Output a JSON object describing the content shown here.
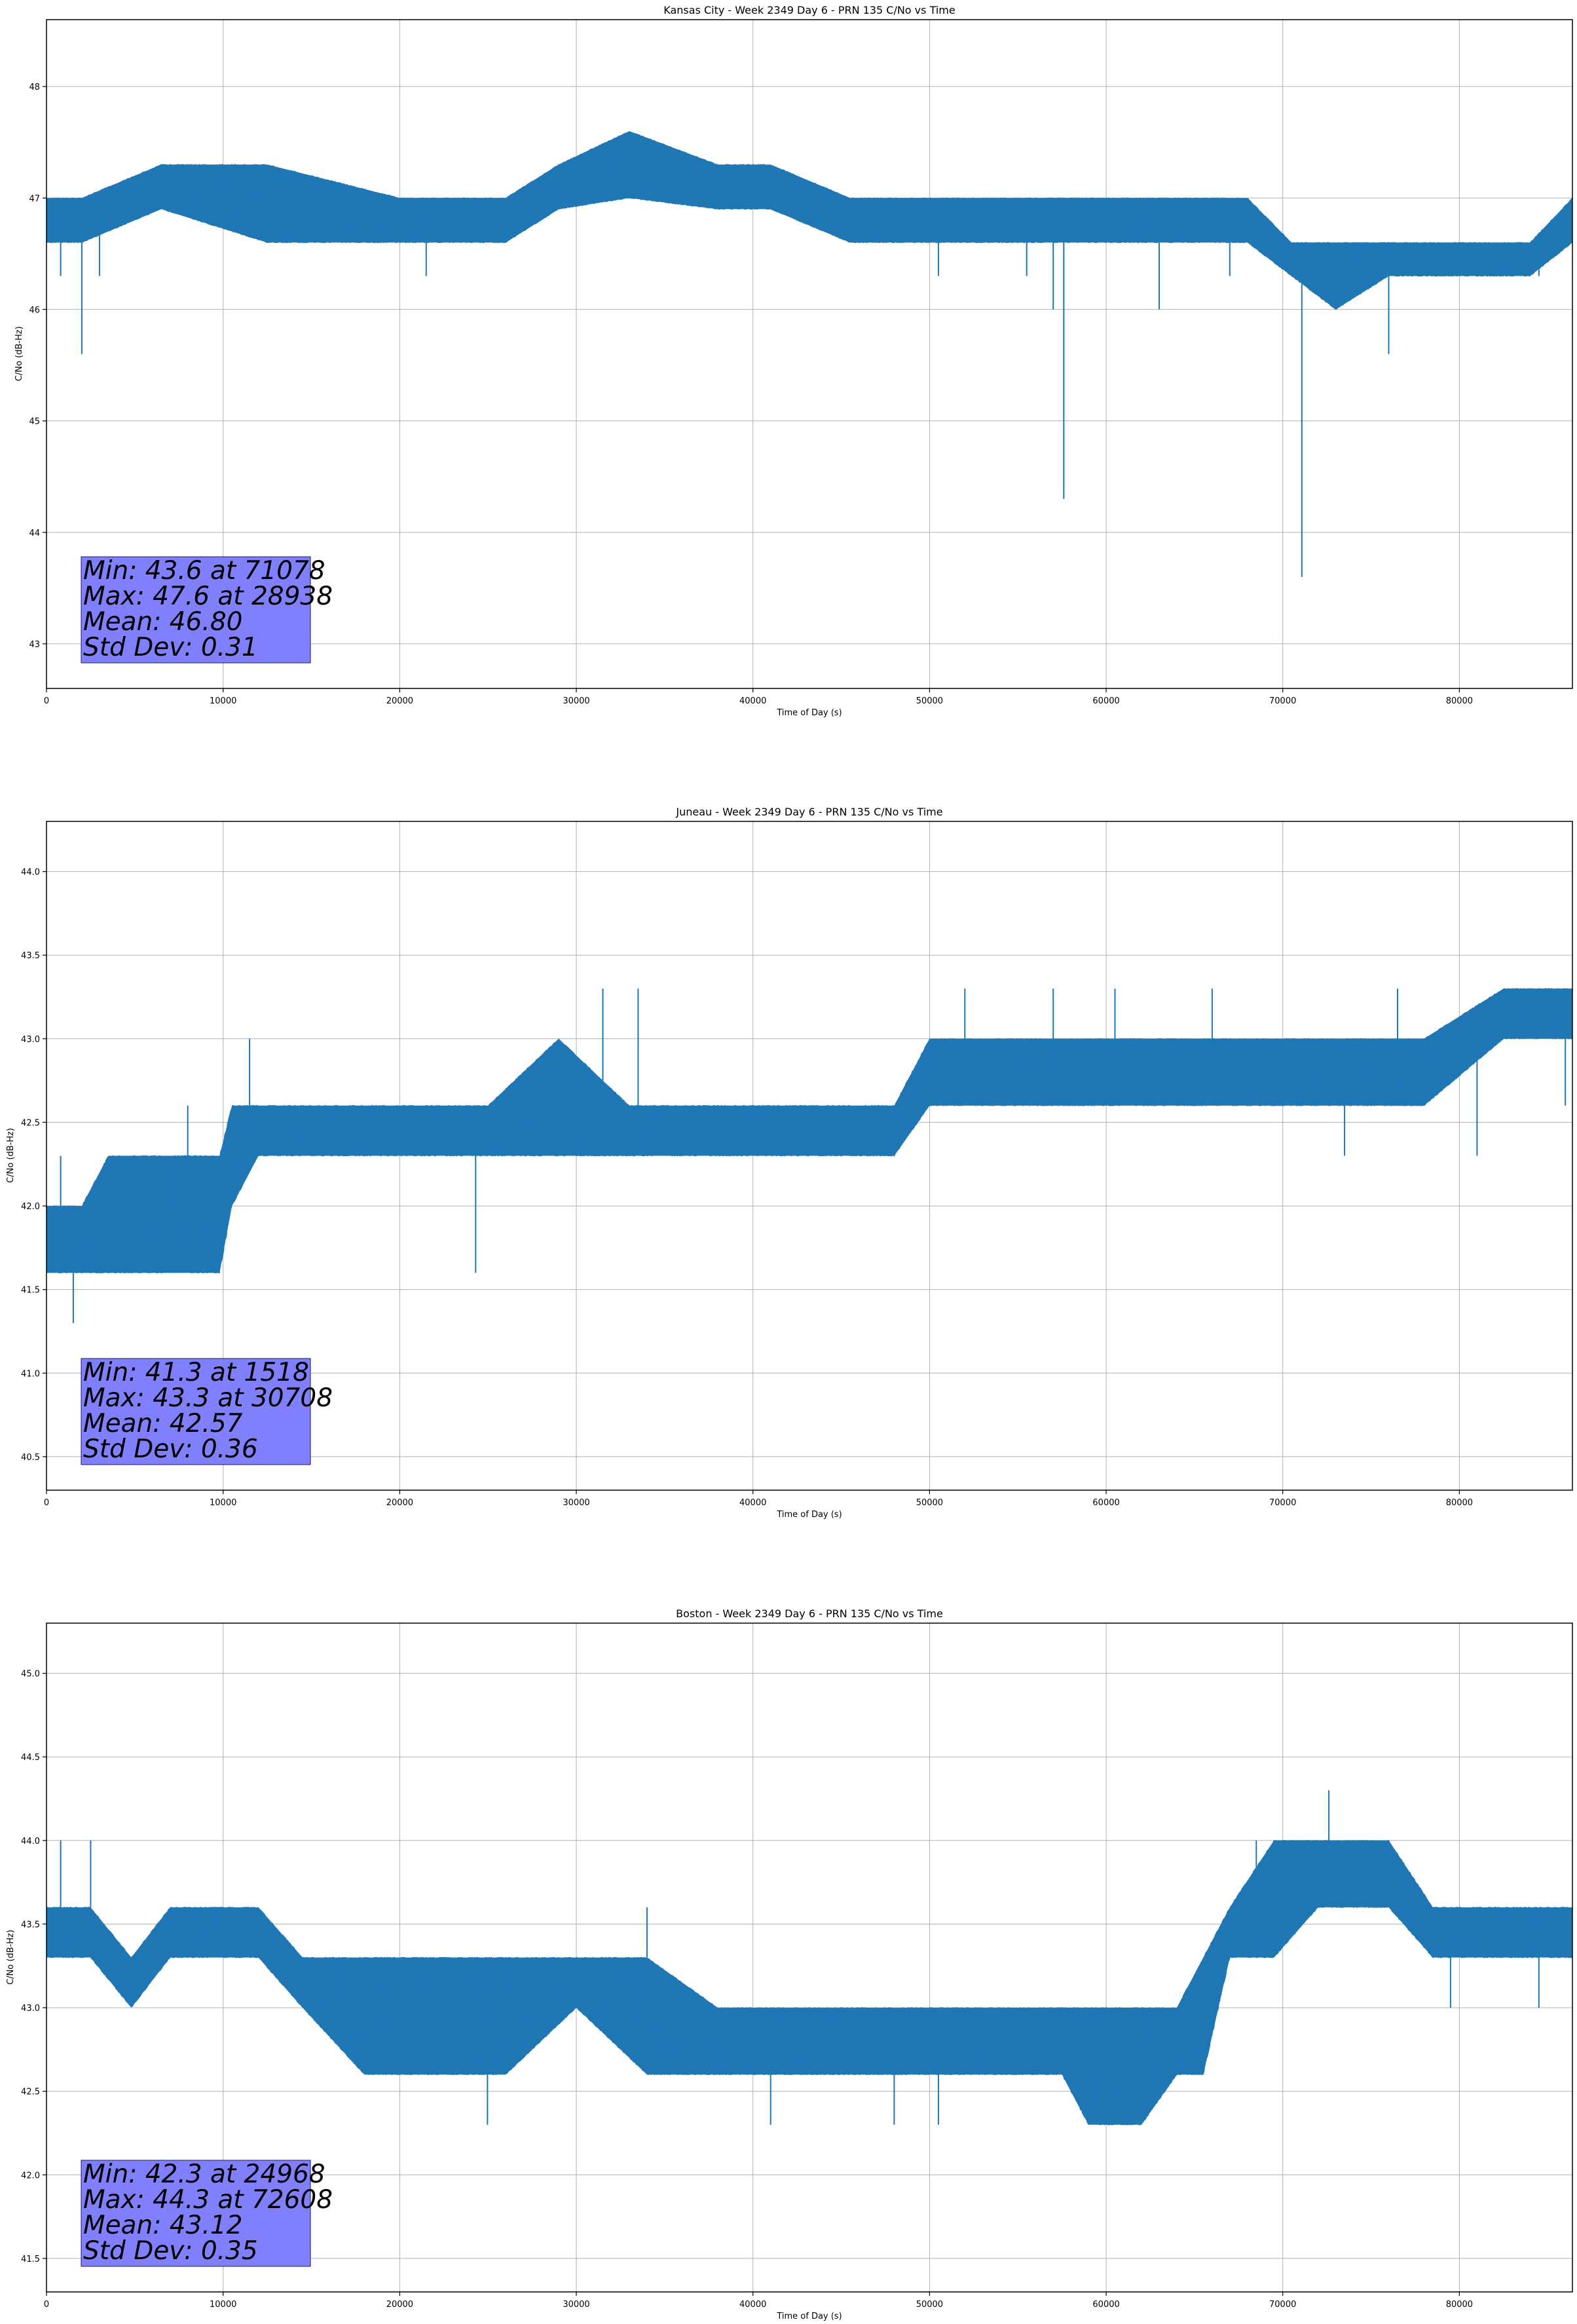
{
  "chart_data": [
    {
      "type": "line",
      "title": "Kansas City - Week 2349 Day 6 - PRN 135 C/No vs Time",
      "xlabel": "Time of Day (s)",
      "ylabel": "C/No (dB-Hz)",
      "xlim": [
        0,
        86400
      ],
      "ylim": [
        42.6,
        48.6
      ],
      "x_ticks": [
        0,
        10000,
        20000,
        30000,
        40000,
        50000,
        60000,
        70000,
        80000
      ],
      "y_ticks": [
        43,
        44,
        45,
        46,
        47,
        48
      ],
      "y_decimals": 0,
      "grid": true,
      "color": "#1f77b4",
      "series": {
        "name": "C/No",
        "x": [
          0,
          2000,
          6500,
          12500,
          20000,
          23000,
          26000,
          29000,
          33000,
          38000,
          41000,
          45500,
          50000,
          56000,
          62000,
          68000,
          70500,
          73000,
          76000,
          78000,
          80500,
          84000,
          86400
        ],
        "low": [
          46.6,
          46.6,
          46.9,
          46.6,
          46.6,
          46.6,
          46.6,
          46.9,
          47.0,
          46.9,
          46.9,
          46.6,
          46.6,
          46.6,
          46.6,
          46.6,
          46.3,
          46.0,
          46.3,
          46.3,
          46.3,
          46.3,
          46.6
        ],
        "high": [
          47.0,
          47.0,
          47.3,
          47.3,
          47.0,
          47.0,
          47.0,
          47.3,
          47.6,
          47.3,
          47.3,
          47.0,
          47.0,
          47.0,
          47.0,
          47.0,
          46.6,
          46.6,
          46.6,
          46.6,
          46.6,
          46.6,
          47.0
        ],
        "spikes": [
          [
            2000,
            45.6
          ],
          [
            800,
            46.3
          ],
          [
            3000,
            46.3
          ],
          [
            21500,
            46.3
          ],
          [
            46000,
            46.6
          ],
          [
            50500,
            46.3
          ],
          [
            55500,
            46.3
          ],
          [
            57000,
            46.0
          ],
          [
            57600,
            44.3
          ],
          [
            63000,
            46.0
          ],
          [
            71078,
            43.6
          ],
          [
            76000,
            45.6
          ],
          [
            67000,
            46.3
          ],
          [
            79500,
            46.3
          ],
          [
            84500,
            46.3
          ]
        ]
      },
      "stats": [
        "Min: 43.6 at 71078",
        "Max: 47.6 at 28938",
        "Mean: 46.80",
        "Std Dev: 0.31"
      ]
    },
    {
      "type": "line",
      "title": "Juneau - Week 2349 Day 6 - PRN 135 C/No vs Time",
      "xlabel": "Time of Day (s)",
      "ylabel": "C/No (dB-Hz)",
      "xlim": [
        0,
        86400
      ],
      "ylim": [
        40.3,
        44.3
      ],
      "x_ticks": [
        0,
        10000,
        20000,
        30000,
        40000,
        50000,
        60000,
        70000,
        80000
      ],
      "y_ticks": [
        40.5,
        41.0,
        41.5,
        42.0,
        42.5,
        43.0,
        43.5,
        44.0
      ],
      "y_decimals": 1,
      "grid": true,
      "color": "#1f77b4",
      "series": {
        "name": "C/No",
        "x": [
          0,
          2000,
          3500,
          5000,
          9800,
          10500,
          12000,
          17000,
          20000,
          25000,
          29000,
          33000,
          38000,
          42000,
          45000,
          48000,
          50000,
          56000,
          60000,
          66000,
          72000,
          78000,
          82500,
          86400
        ],
        "low": [
          41.6,
          41.6,
          41.6,
          41.6,
          41.6,
          42.0,
          42.3,
          42.3,
          42.3,
          42.3,
          42.3,
          42.3,
          42.3,
          42.3,
          42.3,
          42.3,
          42.6,
          42.6,
          42.6,
          42.6,
          42.6,
          42.6,
          43.0,
          43.0
        ],
        "high": [
          42.0,
          42.0,
          42.3,
          42.3,
          42.3,
          42.6,
          42.6,
          42.6,
          42.6,
          42.6,
          43.0,
          42.6,
          42.6,
          42.6,
          42.6,
          42.6,
          43.0,
          43.0,
          43.0,
          43.0,
          43.0,
          43.0,
          43.3,
          43.3
        ],
        "spikes": [
          [
            1518,
            41.3
          ],
          [
            800,
            42.3
          ],
          [
            8000,
            42.6
          ],
          [
            11500,
            43.0
          ],
          [
            24300,
            41.6
          ],
          [
            31500,
            43.3
          ],
          [
            33500,
            43.3
          ],
          [
            48000,
            42.3
          ],
          [
            52000,
            43.3
          ],
          [
            57000,
            43.3
          ],
          [
            60500,
            43.3
          ],
          [
            66000,
            43.3
          ],
          [
            73500,
            42.3
          ],
          [
            76500,
            43.3
          ],
          [
            81000,
            42.3
          ],
          [
            86000,
            42.6
          ]
        ]
      },
      "stats": [
        "Min: 41.3 at 1518",
        "Max: 43.3 at 30708",
        "Mean: 42.57",
        "Std Dev: 0.36"
      ]
    },
    {
      "type": "line",
      "title": "Boston - Week 2349 Day 6 - PRN 135 C/No vs Time",
      "xlabel": "Time of Day (s)",
      "ylabel": "C/No (dB-Hz)",
      "xlim": [
        0,
        86400
      ],
      "ylim": [
        41.3,
        45.3
      ],
      "x_ticks": [
        0,
        10000,
        20000,
        30000,
        40000,
        50000,
        60000,
        70000,
        80000
      ],
      "y_ticks": [
        41.5,
        42.0,
        42.5,
        43.0,
        43.5,
        44.0,
        44.5,
        45.0
      ],
      "y_decimals": 1,
      "grid": true,
      "color": "#1f77b4",
      "series": {
        "name": "C/No",
        "x": [
          0,
          2500,
          4800,
          7000,
          12000,
          14500,
          18000,
          22000,
          26000,
          30000,
          34000,
          38000,
          42000,
          46000,
          50000,
          55000,
          57500,
          59000,
          62000,
          64000,
          65500,
          67000,
          69500,
          72000,
          76000,
          78500,
          82000,
          86400
        ],
        "low": [
          43.3,
          43.3,
          43.0,
          43.3,
          43.3,
          43.0,
          42.6,
          42.6,
          42.6,
          43.0,
          42.6,
          42.6,
          42.6,
          42.6,
          42.6,
          42.6,
          42.6,
          42.3,
          42.3,
          42.6,
          42.6,
          43.3,
          43.3,
          43.6,
          43.6,
          43.3,
          43.3,
          43.3
        ],
        "high": [
          43.6,
          43.6,
          43.3,
          43.6,
          43.6,
          43.3,
          43.3,
          43.3,
          43.3,
          43.3,
          43.3,
          43.0,
          43.0,
          43.0,
          43.0,
          43.0,
          43.0,
          43.0,
          43.0,
          43.0,
          43.3,
          43.6,
          44.0,
          44.0,
          44.0,
          43.6,
          43.6,
          43.6
        ],
        "spikes": [
          [
            800,
            44.0
          ],
          [
            2500,
            44.0
          ],
          [
            24968,
            42.3
          ],
          [
            34000,
            43.6
          ],
          [
            41000,
            42.3
          ],
          [
            48000,
            42.3
          ],
          [
            50500,
            42.3
          ],
          [
            72608,
            44.3
          ],
          [
            68500,
            44.0
          ],
          [
            79500,
            43.0
          ],
          [
            84500,
            43.0
          ]
        ]
      },
      "stats": [
        "Min: 42.3 at 24968",
        "Max: 44.3 at 72608",
        "Mean: 43.12",
        "Std Dev: 0.35"
      ]
    }
  ]
}
